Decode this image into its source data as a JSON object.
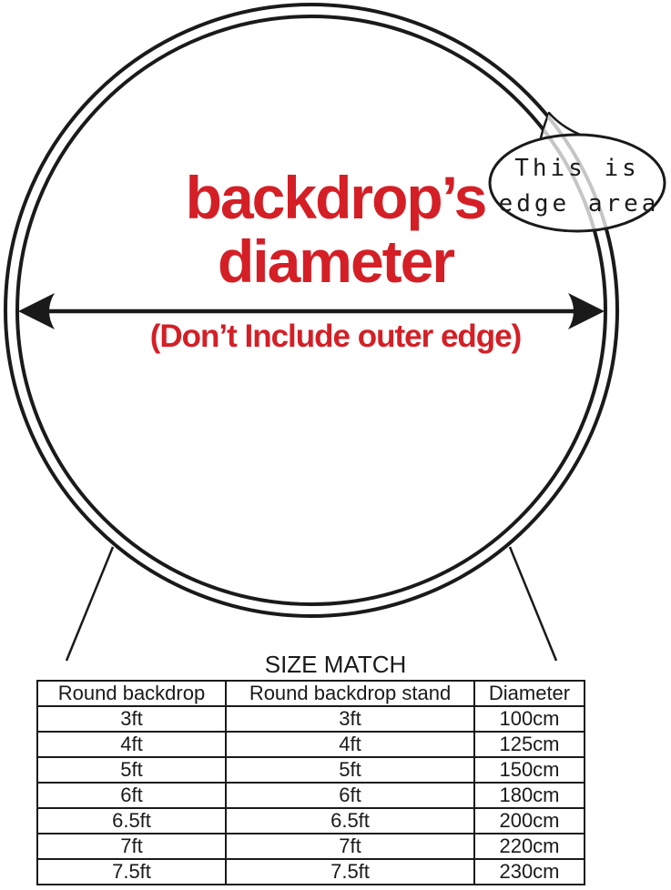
{
  "diagram": {
    "title_line1": "backdrop’s",
    "title_line2": "diameter",
    "subtitle": "(Don’t Include outer edge)",
    "title_color": "#d41f26",
    "bubble": {
      "line1": "This is",
      "line2": "edge area"
    },
    "colors": {
      "line": "#1a1a1a",
      "edge_highlight": "#c6c6c6",
      "background": "#ffffff"
    }
  },
  "size_table": {
    "heading": "SIZE MATCH",
    "columns": [
      "Round backdrop",
      "Round backdrop stand",
      "Diameter"
    ],
    "rows": [
      [
        "3ft",
        "3ft",
        "100cm"
      ],
      [
        "4ft",
        "4ft",
        "125cm"
      ],
      [
        "5ft",
        "5ft",
        "150cm"
      ],
      [
        "6ft",
        "6ft",
        "180cm"
      ],
      [
        "6.5ft",
        "6.5ft",
        "200cm"
      ],
      [
        "7ft",
        "7ft",
        "220cm"
      ],
      [
        "7.5ft",
        "7.5ft",
        "230cm"
      ]
    ]
  }
}
